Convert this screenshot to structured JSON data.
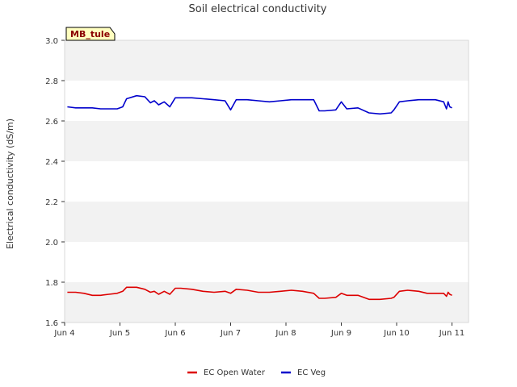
{
  "chart_data": {
    "type": "line",
    "title": "Soil electrical conductivity",
    "site_tag": "MB_tule",
    "xlabel": "",
    "ylabel": "Electrical conductivity (dS/m)",
    "ylim": [
      1.6,
      3.0
    ],
    "yticks": [
      "1.6",
      "1.8",
      "2.0",
      "2.2",
      "2.4",
      "2.6",
      "2.8",
      "3.0"
    ],
    "xlim": [
      0,
      7.0
    ],
    "xticks": [
      {
        "day": 0,
        "label": "Jun 4"
      },
      {
        "day": 1,
        "label": "Jun 5"
      },
      {
        "day": 2,
        "label": "Jun 6"
      },
      {
        "day": 3,
        "label": "Jun 7"
      },
      {
        "day": 4,
        "label": "Jun 8"
      },
      {
        "day": 5,
        "label": "Jun 9"
      },
      {
        "day": 6,
        "label": "Jun 10"
      },
      {
        "day": 7,
        "label": "Jun 11"
      }
    ],
    "grid": "alternating horizontal bands",
    "legend_position": "bottom-center",
    "series": [
      {
        "name": "EC Open Water",
        "color": "#dd0000",
        "x": [
          0.05,
          0.2,
          0.35,
          0.5,
          0.65,
          0.8,
          0.95,
          1.05,
          1.12,
          1.3,
          1.45,
          1.55,
          1.62,
          1.7,
          1.8,
          1.9,
          2.0,
          2.1,
          2.3,
          2.5,
          2.7,
          2.9,
          3.0,
          3.1,
          3.3,
          3.5,
          3.7,
          3.9,
          4.1,
          4.3,
          4.5,
          4.6,
          4.7,
          4.9,
          5.0,
          5.1,
          5.3,
          5.5,
          5.7,
          5.9,
          5.95,
          6.05,
          6.2,
          6.4,
          6.55,
          6.7,
          6.85,
          6.9,
          6.93,
          6.96,
          7.0
        ],
        "values": [
          1.75,
          1.75,
          1.745,
          1.735,
          1.735,
          1.74,
          1.745,
          1.755,
          1.775,
          1.775,
          1.765,
          1.75,
          1.755,
          1.74,
          1.755,
          1.74,
          1.77,
          1.77,
          1.765,
          1.755,
          1.75,
          1.755,
          1.745,
          1.765,
          1.76,
          1.75,
          1.75,
          1.755,
          1.76,
          1.755,
          1.745,
          1.72,
          1.72,
          1.725,
          1.745,
          1.735,
          1.735,
          1.715,
          1.715,
          1.72,
          1.725,
          1.755,
          1.76,
          1.755,
          1.745,
          1.745,
          1.745,
          1.73,
          1.75,
          1.74,
          1.735
        ]
      },
      {
        "name": "EC Veg",
        "color": "#0000cc",
        "x": [
          0.05,
          0.2,
          0.35,
          0.5,
          0.65,
          0.8,
          0.95,
          1.05,
          1.12,
          1.3,
          1.45,
          1.55,
          1.62,
          1.7,
          1.8,
          1.9,
          2.0,
          2.1,
          2.3,
          2.5,
          2.7,
          2.9,
          3.0,
          3.1,
          3.3,
          3.5,
          3.7,
          3.9,
          4.1,
          4.3,
          4.5,
          4.6,
          4.7,
          4.9,
          5.0,
          5.1,
          5.3,
          5.5,
          5.7,
          5.9,
          5.95,
          6.05,
          6.2,
          6.4,
          6.55,
          6.7,
          6.85,
          6.9,
          6.93,
          6.96,
          7.0
        ],
        "values": [
          2.67,
          2.665,
          2.665,
          2.665,
          2.66,
          2.66,
          2.66,
          2.67,
          2.71,
          2.725,
          2.72,
          2.69,
          2.7,
          2.68,
          2.695,
          2.67,
          2.715,
          2.715,
          2.715,
          2.71,
          2.705,
          2.7,
          2.655,
          2.705,
          2.705,
          2.7,
          2.695,
          2.7,
          2.705,
          2.705,
          2.705,
          2.65,
          2.65,
          2.655,
          2.695,
          2.66,
          2.665,
          2.64,
          2.635,
          2.64,
          2.655,
          2.695,
          2.7,
          2.705,
          2.705,
          2.705,
          2.695,
          2.66,
          2.695,
          2.67,
          2.665
        ]
      }
    ]
  }
}
